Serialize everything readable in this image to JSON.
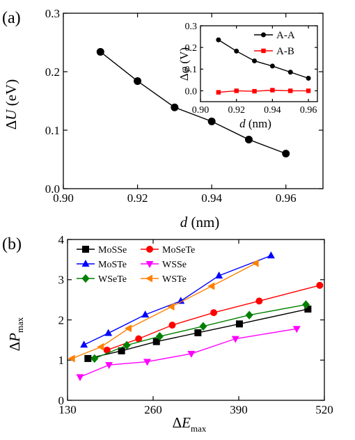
{
  "chart_data": [
    {
      "panel": "(a)",
      "type": "line",
      "xlabel": "d (nm)",
      "ylabel": "ΔU (eV)",
      "xlim": [
        0.9,
        0.97
      ],
      "ylim": [
        0.0,
        0.3
      ],
      "x_ticks": [
        "0.90",
        "0.92",
        "0.94",
        "0.96"
      ],
      "y_ticks": [
        "0.0",
        "0.1",
        "0.2",
        "0.3"
      ],
      "grid": false,
      "series": [
        {
          "x": [
            0.91,
            0.92,
            0.93,
            0.94,
            0.95,
            0.96
          ],
          "y": [
            0.234,
            0.184,
            0.139,
            0.115,
            0.084,
            0.06
          ],
          "color": "#000000",
          "marker": "circle"
        }
      ],
      "inset": {
        "type": "line",
        "xlabel": "d (nm)",
        "ylabel": "Δφ (V)",
        "xlim": [
          0.9,
          0.965
        ],
        "ylim": [
          -0.05,
          0.3
        ],
        "x_ticks": [
          "0.90",
          "0.92",
          "0.94",
          "0.96"
        ],
        "y_ticks": [
          "0.0",
          "0.1",
          "0.2",
          "0.3"
        ],
        "legend_position": "top-right",
        "series": [
          {
            "name": "A-A",
            "color": "#000000",
            "marker": "circle",
            "x": [
              0.91,
              0.92,
              0.93,
              0.94,
              0.95,
              0.96
            ],
            "y": [
              0.235,
              0.183,
              0.138,
              0.114,
              0.086,
              0.058
            ]
          },
          {
            "name": "A-B",
            "color": "#ff0000",
            "marker": "square",
            "x": [
              0.91,
              0.92,
              0.93,
              0.94,
              0.95,
              0.96
            ],
            "y": [
              -0.007,
              0.0,
              -0.002,
              0.003,
              0.0,
              0.0
            ]
          }
        ]
      }
    },
    {
      "panel": "(b)",
      "type": "line",
      "xlabel": "ΔE_max",
      "ylabel": "ΔP_max",
      "xlim": [
        130,
        520
      ],
      "ylim": [
        0,
        4
      ],
      "x_ticks": [
        "130",
        "260",
        "390",
        "520"
      ],
      "y_ticks": [
        "0",
        "1",
        "2",
        "3",
        "4"
      ],
      "grid": false,
      "legend_position": "top-left",
      "series": [
        {
          "name": "MoSSe",
          "color": "#000000",
          "marker": "square",
          "x": [
            161,
            212,
            265,
            328,
            391,
            495
          ],
          "y": [
            1.04,
            1.23,
            1.46,
            1.68,
            1.9,
            2.27
          ]
        },
        {
          "name": "MoSeTe",
          "color": "#ff0000",
          "marker": "circle",
          "x": [
            190,
            238,
            289,
            352,
            421,
            513
          ],
          "y": [
            1.25,
            1.53,
            1.87,
            2.18,
            2.47,
            2.86
          ]
        },
        {
          "name": "MoSTe",
          "color": "#0000ff",
          "marker": "triangle-up",
          "x": [
            155,
            192,
            248,
            302,
            360,
            439
          ],
          "y": [
            1.38,
            1.67,
            2.13,
            2.47,
            3.1,
            3.6
          ]
        },
        {
          "name": "WSSe",
          "color": "#ff00ff",
          "marker": "triangle-down",
          "x": [
            149,
            193,
            251,
            318,
            385,
            478
          ],
          "y": [
            0.58,
            0.88,
            0.96,
            1.16,
            1.53,
            1.78
          ]
        },
        {
          "name": "WSeTe",
          "color": "#008000",
          "marker": "diamond",
          "x": [
            171,
            220,
            270,
            336,
            406,
            492
          ],
          "y": [
            1.04,
            1.37,
            1.59,
            1.84,
            2.12,
            2.38
          ]
        },
        {
          "name": "WSTe",
          "color": "#ff8000",
          "marker": "triangle-left",
          "x": [
            137,
            181,
            223,
            288,
            349,
            416
          ],
          "y": [
            1.04,
            1.33,
            1.79,
            2.33,
            2.84,
            3.41
          ]
        }
      ]
    }
  ]
}
